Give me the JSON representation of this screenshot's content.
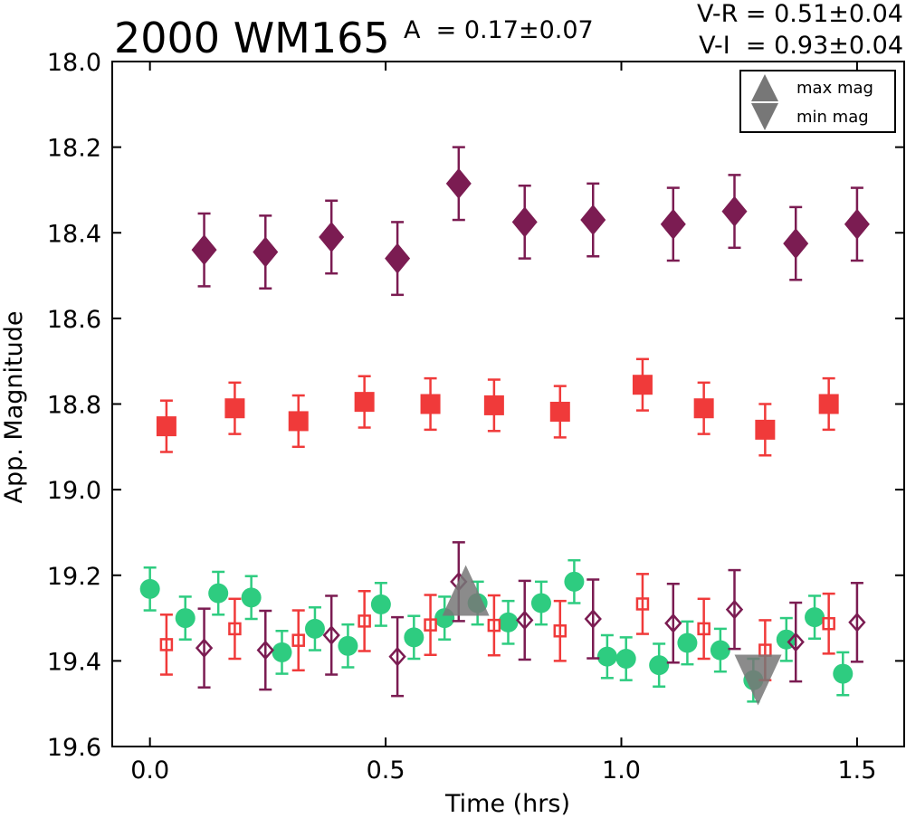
{
  "chart_data": {
    "type": "scatter",
    "title": "2000 WM165",
    "amplitude_label": "A  = 0.17±0.07",
    "color_indices": [
      "V-R = 0.51±0.04",
      "V-I  = 0.93±0.04"
    ],
    "xlabel": "Time (hrs)",
    "ylabel": "App. Magnitude",
    "xlim": [
      -0.08,
      1.6
    ],
    "ylim": [
      19.6,
      18.0
    ],
    "y_inverted": true,
    "xticks": [
      0.0,
      0.5,
      1.0,
      1.5
    ],
    "xtick_labels": [
      "0.0",
      "0.5",
      "1.0",
      "1.5"
    ],
    "yticks": [
      18.0,
      18.2,
      18.4,
      18.6,
      18.8,
      19.0,
      19.2,
      19.4,
      19.6
    ],
    "ytick_labels": [
      "18.0",
      "18.2",
      "18.4",
      "18.6",
      "18.8",
      "19.0",
      "19.2",
      "19.4",
      "19.6"
    ],
    "grid": false,
    "legend": {
      "position": "top-right",
      "entries": [
        {
          "label": "max mag",
          "marker": "triangle-up",
          "color": "#777777"
        },
        {
          "label": "min mag",
          "marker": "triangle-down",
          "color": "#777777"
        }
      ]
    },
    "series": [
      {
        "marker": "diamond",
        "filled": true,
        "color": "#7b1c52",
        "x": [
          0.115,
          0.245,
          0.385,
          0.525,
          0.655,
          0.795,
          0.94,
          1.11,
          1.24,
          1.37,
          1.5
        ],
        "y": [
          18.44,
          18.445,
          18.41,
          18.46,
          18.285,
          18.375,
          18.37,
          18.38,
          18.35,
          18.425,
          18.38
        ],
        "err": 0.085
      },
      {
        "marker": "square",
        "filled": true,
        "color": "#f03a3a",
        "x": [
          0.035,
          0.18,
          0.315,
          0.455,
          0.595,
          0.73,
          0.87,
          1.045,
          1.175,
          1.305,
          1.44
        ],
        "y": [
          18.852,
          18.81,
          18.84,
          18.795,
          18.8,
          18.803,
          18.818,
          18.755,
          18.81,
          18.86,
          18.8
        ],
        "err": 0.06
      },
      {
        "marker": "circle",
        "filled": true,
        "color": "#2ecc80",
        "x": [
          0.0,
          0.075,
          0.145,
          0.215,
          0.28,
          0.35,
          0.42,
          0.49,
          0.56,
          0.625,
          0.695,
          0.76,
          0.83,
          0.9,
          0.97,
          1.01,
          1.08,
          1.14,
          1.21,
          1.28,
          1.35,
          1.41,
          1.47
        ],
        "y": [
          19.232,
          19.3,
          19.242,
          19.252,
          19.38,
          19.325,
          19.365,
          19.268,
          19.345,
          19.3,
          19.265,
          19.31,
          19.265,
          19.215,
          19.39,
          19.395,
          19.41,
          19.358,
          19.375,
          19.445,
          19.35,
          19.298,
          19.43
        ],
        "err": 0.05
      },
      {
        "marker": "square",
        "filled": false,
        "color": "#f03a3a",
        "x": [
          0.035,
          0.18,
          0.315,
          0.455,
          0.595,
          0.73,
          0.87,
          1.045,
          1.175,
          1.305,
          1.44
        ],
        "y": [
          19.362,
          19.325,
          19.352,
          19.307,
          19.316,
          19.317,
          19.33,
          19.267,
          19.325,
          19.375,
          19.313
        ],
        "err": 0.07
      },
      {
        "marker": "diamond",
        "filled": false,
        "color": "#7b1c52",
        "x": [
          0.115,
          0.245,
          0.385,
          0.525,
          0.655,
          0.795,
          0.94,
          1.11,
          1.24,
          1.37,
          1.5
        ],
        "y": [
          19.37,
          19.375,
          19.34,
          19.39,
          19.215,
          19.305,
          19.302,
          19.312,
          19.28,
          19.356,
          19.31
        ],
        "err": 0.092
      }
    ],
    "extrema": [
      {
        "label": "max mag",
        "x": 0.67,
        "y": 19.265,
        "marker": "triangle-up",
        "color": "#777777"
      },
      {
        "label": "min mag",
        "x": 1.29,
        "y": 19.415,
        "marker": "triangle-down",
        "color": "#777777"
      }
    ]
  }
}
